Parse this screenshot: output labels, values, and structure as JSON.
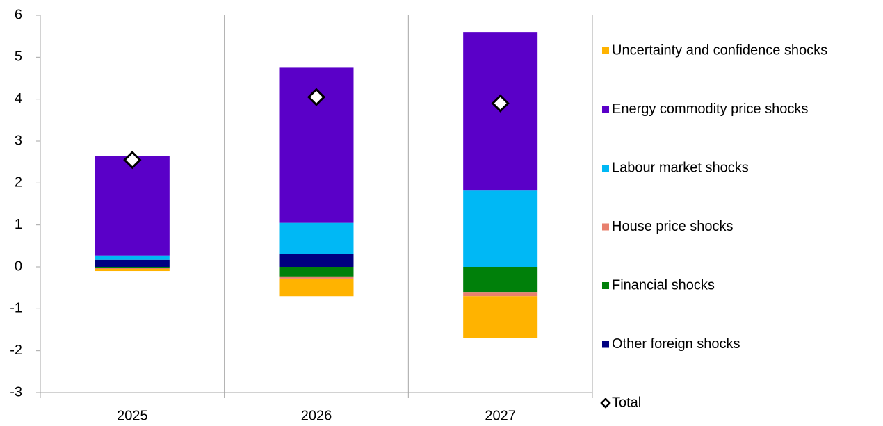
{
  "chart_data": {
    "type": "stacked_bar",
    "categories": [
      "2025",
      "2026",
      "2027"
    ],
    "series": [
      {
        "name": "Other foreign shocks",
        "color": "#000080",
        "values": [
          0.17,
          0.3,
          0.0
        ]
      },
      {
        "name": "Financial shocks",
        "color": "#00800a",
        "values": [
          -0.03,
          -0.23,
          -0.6
        ]
      },
      {
        "name": "House price shocks",
        "color": "#e8806e",
        "values": [
          -0.02,
          -0.05,
          -0.1
        ]
      },
      {
        "name": "Labour market shocks",
        "color": "#00b8f5",
        "values": [
          0.1,
          0.75,
          1.82
        ]
      },
      {
        "name": "Energy commodity price shocks",
        "color": "#5a00c8",
        "values": [
          2.38,
          3.7,
          3.78
        ]
      },
      {
        "name": "Uncertainty and confidence shocks",
        "color": "#ffb300",
        "values": [
          -0.05,
          -0.42,
          -1.0
        ]
      }
    ],
    "total": {
      "name": "Total",
      "values": [
        2.55,
        4.05,
        3.9
      ]
    },
    "ylim": [
      -3,
      6
    ],
    "yticks": [
      -3,
      -2,
      -1,
      0,
      1,
      2,
      3,
      4,
      5,
      6
    ]
  }
}
